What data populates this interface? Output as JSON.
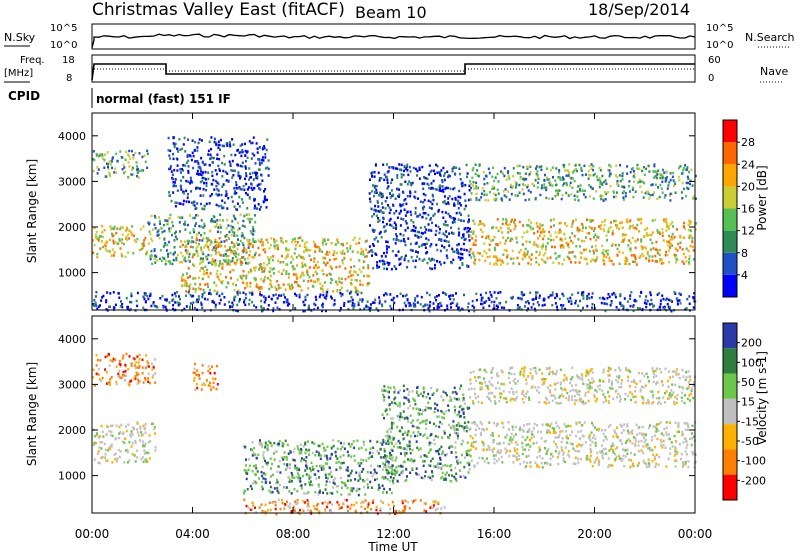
{
  "header": {
    "title": "Christmas Valley East (fitACF)",
    "beam": "Beam 10",
    "date": "18/Sep/2014"
  },
  "noise_panel": {
    "left_label": "N.Sky",
    "left_ticks": [
      "10^5",
      "10^0"
    ],
    "right_label": "N.Search",
    "right_ticks": [
      "10^5",
      "10^0"
    ]
  },
  "freq_panel": {
    "left_label_line1": "Freq.",
    "left_label_line2": "[MHz]",
    "left_ticks": [
      "18",
      "8"
    ],
    "right_label": "Nave",
    "right_ticks": [
      "60",
      "0"
    ]
  },
  "cpid": {
    "label": "CPID",
    "value": "normal (fast) 151 IF"
  },
  "time_axis": {
    "ticks": [
      "00:00",
      "04:00",
      "08:00",
      "12:00",
      "16:00",
      "20:00",
      "00:00"
    ],
    "label": "Time UT"
  },
  "colors": {
    "power": [
      "#0000ff",
      "#2050c8",
      "#2e8b57",
      "#55c055",
      "#cccc33",
      "#ffa500",
      "#ff6600",
      "#ff0000"
    ],
    "velocity": [
      "#2a3aa8",
      "#2e7d3e",
      "#6cc84a",
      "#c0c0c0",
      "#ffb000",
      "#ff7f00",
      "#ff0000"
    ]
  },
  "chart_data": [
    {
      "type": "heatmap",
      "panel": "power",
      "ylabel": "Slant Range [km]",
      "yticks": [
        1000,
        2000,
        3000,
        4000
      ],
      "ylim": [
        180,
        4500
      ],
      "xlim_hours": [
        0,
        24
      ],
      "colorbar": {
        "label": "Power [dB]",
        "ticks": [
          "4",
          "8",
          "12",
          "16",
          "20",
          "24",
          "28"
        ],
        "range": [
          0,
          32
        ]
      },
      "echo_regions": [
        {
          "t": [
            0.0,
            2.2
          ],
          "r": [
            1350,
            2050
          ],
          "level": "high"
        },
        {
          "t": [
            0.0,
            2.2
          ],
          "r": [
            3100,
            3700
          ],
          "level": "mid"
        },
        {
          "t": [
            2.2,
            6.5
          ],
          "r": [
            1200,
            2300
          ],
          "level": "mid"
        },
        {
          "t": [
            3.0,
            7.0
          ],
          "r": [
            2400,
            4000
          ],
          "level": "low"
        },
        {
          "t": [
            3.5,
            11.0
          ],
          "r": [
            600,
            1800
          ],
          "level": "high"
        },
        {
          "t": [
            11.0,
            15.0
          ],
          "r": [
            1100,
            3400
          ],
          "level": "low"
        },
        {
          "t": [
            15.0,
            24.0
          ],
          "r": [
            1200,
            2200
          ],
          "level": "high"
        },
        {
          "t": [
            15.0,
            24.0
          ],
          "r": [
            2600,
            3400
          ],
          "level": "mid"
        },
        {
          "t": [
            0.0,
            24.0
          ],
          "r": [
            180,
            600
          ],
          "level": "low"
        }
      ]
    },
    {
      "type": "heatmap",
      "panel": "velocity",
      "ylabel": "Slant Range [km]",
      "yticks": [
        1000,
        2000,
        3000,
        4000
      ],
      "ylim": [
        180,
        4500
      ],
      "xlim_hours": [
        0,
        24
      ],
      "colorbar": {
        "label": "Velocity [m s-1]",
        "ticks": [
          "200",
          "100",
          "50",
          "15",
          "-15",
          "-50",
          "-100",
          "-200"
        ]
      },
      "echo_regions": [
        {
          "t": [
            0.0,
            2.5
          ],
          "r": [
            1300,
            2200
          ],
          "vel": "ground"
        },
        {
          "t": [
            0.0,
            2.5
          ],
          "r": [
            3000,
            3700
          ],
          "vel": "away"
        },
        {
          "t": [
            4.0,
            5.0
          ],
          "r": [
            2900,
            3500
          ],
          "vel": "away"
        },
        {
          "t": [
            6.0,
            12.0
          ],
          "r": [
            600,
            1800
          ],
          "vel": "toward"
        },
        {
          "t": [
            11.5,
            15.0
          ],
          "r": [
            900,
            3000
          ],
          "vel": "toward"
        },
        {
          "t": [
            15.0,
            24.0
          ],
          "r": [
            1200,
            2200
          ],
          "vel": "ground"
        },
        {
          "t": [
            15.0,
            24.0
          ],
          "r": [
            2600,
            3400
          ],
          "vel": "ground"
        },
        {
          "t": [
            6.0,
            14.0
          ],
          "r": [
            180,
            500
          ],
          "vel": "away"
        }
      ]
    }
  ]
}
